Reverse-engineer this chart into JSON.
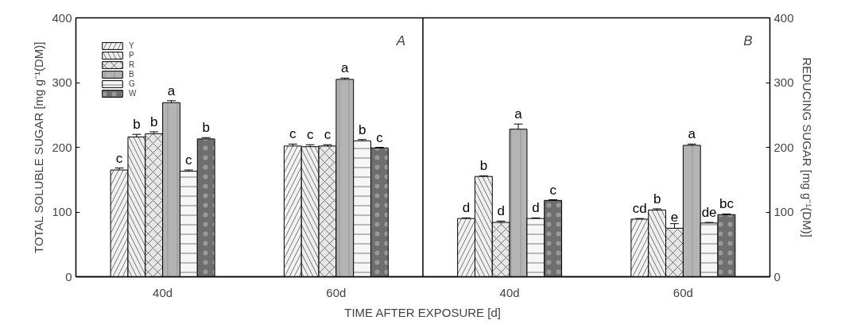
{
  "chart_data": [
    {
      "type": "bar",
      "title": "A",
      "categories": [
        "40d",
        "60d"
      ],
      "xlabel": "TIME AFTER EXPOSURE [d]",
      "ylabel": "TOTAL SOLUBLE SUGAR [mg g⁻¹(DM)]",
      "ylim": [
        0,
        400
      ],
      "yticks": [
        0,
        100,
        200,
        300,
        400
      ],
      "grid": false,
      "legend": "top left",
      "series": [
        {
          "name": "Y",
          "color": "#f2f2f2",
          "values": [
            165,
            202
          ],
          "errors": [
            3,
            3
          ],
          "value_labels": [
            "c",
            "c"
          ]
        },
        {
          "name": "P",
          "color": "#eeeeee",
          "values": [
            216,
            201
          ],
          "errors": [
            4,
            3
          ],
          "value_labels": [
            "b",
            "c"
          ]
        },
        {
          "name": "R",
          "color": "#e6e6e6",
          "values": [
            221,
            202
          ],
          "errors": [
            3,
            2
          ],
          "value_labels": [
            "b",
            "c"
          ]
        },
        {
          "name": "B",
          "color": "#b4b4b4",
          "values": [
            269,
            305
          ],
          "errors": [
            3,
            2
          ],
          "value_labels": [
            "a",
            "a"
          ]
        },
        {
          "name": "G",
          "color": "#f6f6f6",
          "values": [
            163,
            210
          ],
          "errors": [
            2,
            2
          ],
          "value_labels": [
            "c",
            "b"
          ]
        },
        {
          "name": "W",
          "color": "#6e6e6e",
          "values": [
            213,
            199
          ],
          "errors": [
            2,
            1
          ],
          "value_labels": [
            "b",
            "c"
          ]
        }
      ]
    },
    {
      "type": "bar",
      "title": "B",
      "categories": [
        "40d",
        "60d"
      ],
      "y2label": "REDUCING SUGAR [mg g⁻¹(DM)]",
      "y2lim": [
        0,
        400
      ],
      "y2ticks": [
        0,
        100,
        200,
        300,
        400
      ],
      "grid": false,
      "series": [
        {
          "color": "#f2f2f2",
          "axis": "y2",
          "values": [
            90,
            89
          ],
          "errors": [
            1,
            1
          ],
          "value_labels": [
            "d",
            "cd"
          ]
        },
        {
          "color": "#eeeeee",
          "axis": "y2",
          "values": [
            155,
            103
          ],
          "errors": [
            1,
            2
          ],
          "value_labels": [
            "b",
            "b"
          ]
        },
        {
          "color": "#e6e6e6",
          "axis": "y2",
          "values": [
            84,
            75
          ],
          "errors": [
            2,
            7
          ],
          "value_labels": [
            "d",
            "e"
          ]
        },
        {
          "color": "#b4b4b4",
          "axis": "y2",
          "values": [
            228,
            203
          ],
          "errors": [
            8,
            2
          ],
          "value_labels": [
            "a",
            "a"
          ]
        },
        {
          "color": "#f6f6f6",
          "axis": "y2",
          "values": [
            90,
            83
          ],
          "errors": [
            1,
            1
          ],
          "value_labels": [
            "d",
            "de"
          ]
        },
        {
          "color": "#6e6e6e",
          "axis": "y2",
          "values": [
            118,
            96
          ],
          "errors": [
            1,
            1
          ],
          "value_labels": [
            "c",
            "bc"
          ]
        }
      ]
    }
  ]
}
